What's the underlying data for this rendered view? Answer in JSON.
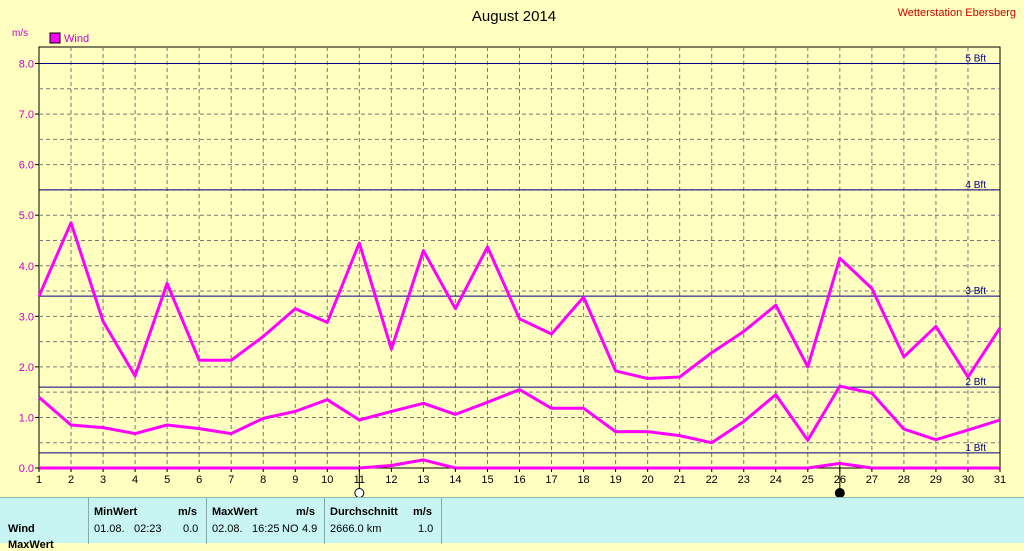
{
  "station_label": "Wetterstation Ebersberg",
  "chart_data": {
    "type": "line",
    "title": "August 2014",
    "ylabel": "m/s",
    "ylim": [
      0,
      8.0
    ],
    "y_ticks": [
      "0.0",
      "1.0",
      "2.0",
      "3.0",
      "4.0",
      "5.0",
      "6.0",
      "7.0",
      "8.0"
    ],
    "grid": true,
    "legend": "top-left",
    "legend_entries": [
      "Wind"
    ],
    "colors": {
      "series": "#ff00ff",
      "background": "#ffffc0",
      "reference": "#000080",
      "title_red": "#cc0000"
    },
    "x": [
      1,
      2,
      3,
      4,
      5,
      6,
      7,
      8,
      9,
      10,
      11,
      12,
      13,
      14,
      15,
      16,
      17,
      18,
      19,
      20,
      21,
      22,
      23,
      24,
      25,
      26,
      27,
      28,
      29,
      30,
      31
    ],
    "series": [
      {
        "values": [
          3.4,
          4.85,
          2.9,
          1.82,
          3.65,
          2.13,
          2.13,
          2.6,
          3.15,
          2.88,
          4.45,
          2.35,
          4.3,
          3.15,
          4.37,
          2.95,
          2.65,
          3.38,
          1.92,
          1.77,
          1.8,
          2.28,
          2.7,
          3.22,
          2.0,
          4.15,
          3.55,
          2.2,
          2.8,
          1.8,
          2.77
        ]
      },
      {
        "values": [
          1.4,
          0.85,
          0.8,
          0.68,
          0.85,
          0.78,
          0.68,
          0.98,
          1.12,
          1.35,
          0.95,
          1.12,
          1.28,
          1.06,
          1.3,
          1.55,
          1.18,
          1.18,
          0.72,
          0.72,
          0.64,
          0.5,
          0.92,
          1.45,
          0.55,
          1.62,
          1.48,
          0.77,
          0.56,
          0.75,
          0.95
        ]
      },
      {
        "values": [
          0,
          0,
          0,
          0,
          0,
          0,
          0,
          0,
          0,
          0,
          0,
          0.05,
          0.16,
          0,
          0,
          0,
          0,
          0,
          0,
          0,
          0,
          0,
          0,
          0,
          0,
          0.09,
          0,
          0,
          0,
          0,
          0
        ]
      }
    ],
    "reference_lines": [
      {
        "label": "1 Bft",
        "value": 0.3
      },
      {
        "label": "2 Bft",
        "value": 1.6
      },
      {
        "label": "3 Bft",
        "value": 3.4
      },
      {
        "label": "4 Bft",
        "value": 5.5
      },
      {
        "label": "5 Bft",
        "value": 8.0
      }
    ],
    "moon_markers": [
      {
        "day": 11,
        "phase": "full-moon"
      },
      {
        "day": 26,
        "phase": "new-moon"
      }
    ]
  },
  "summary_table": {
    "row_label": "Wind",
    "row2_label": "MaxWert",
    "min_header": "MinWert",
    "min_unit": "m/s",
    "min_date": "01.08.",
    "min_time": "02:23",
    "min_value": "0.0",
    "max_header": "MaxWert",
    "max_unit": "m/s",
    "max_date": "02.08.",
    "max_time": "16:25",
    "max_dir": "NO",
    "max_value": "4.9",
    "avg_header": "Durchschnitt",
    "avg_unit": "m/s",
    "avg_km": "2666.0 km",
    "avg_value": "1.0"
  }
}
